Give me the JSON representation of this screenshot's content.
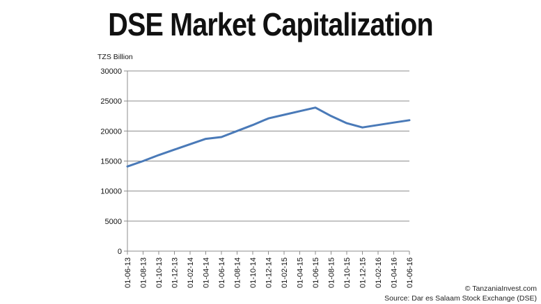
{
  "title": "DSE Market Capitalization",
  "credits": {
    "line1": "© TanzaniaInvest.com",
    "line2": "Source: Dar es Salaam Stock Exchange (DSE)"
  },
  "colors": {
    "line": "#4a7ab8",
    "grid": "#8c8c8c",
    "axis": "#8c8c8c"
  },
  "chart_data": {
    "type": "line",
    "title": "DSE Market Capitalization",
    "unit_label": "TZS Billion",
    "x": [
      "01-06-13",
      "01-08-13",
      "01-10-13",
      "01-12-13",
      "01-02-14",
      "01-04-14",
      "01-06-14",
      "01-08-14",
      "01-10-14",
      "01-12-14",
      "01-02-15",
      "01-04-15",
      "01-06-15",
      "01-08-15",
      "01-10-15",
      "01-12-15",
      "01-02-16",
      "01-04-16",
      "01-06-16"
    ],
    "yticks": [
      0,
      5000,
      10000,
      15000,
      20000,
      25000,
      30000
    ],
    "ylim": [
      0,
      30000
    ],
    "grid": true,
    "series": [
      {
        "values": [
          14100,
          15000,
          16000,
          16900,
          17800,
          18700,
          19000,
          20000,
          21000,
          22100,
          22700,
          23300,
          23900,
          22500,
          21300,
          20600,
          21000,
          21400,
          21800
        ]
      }
    ]
  }
}
